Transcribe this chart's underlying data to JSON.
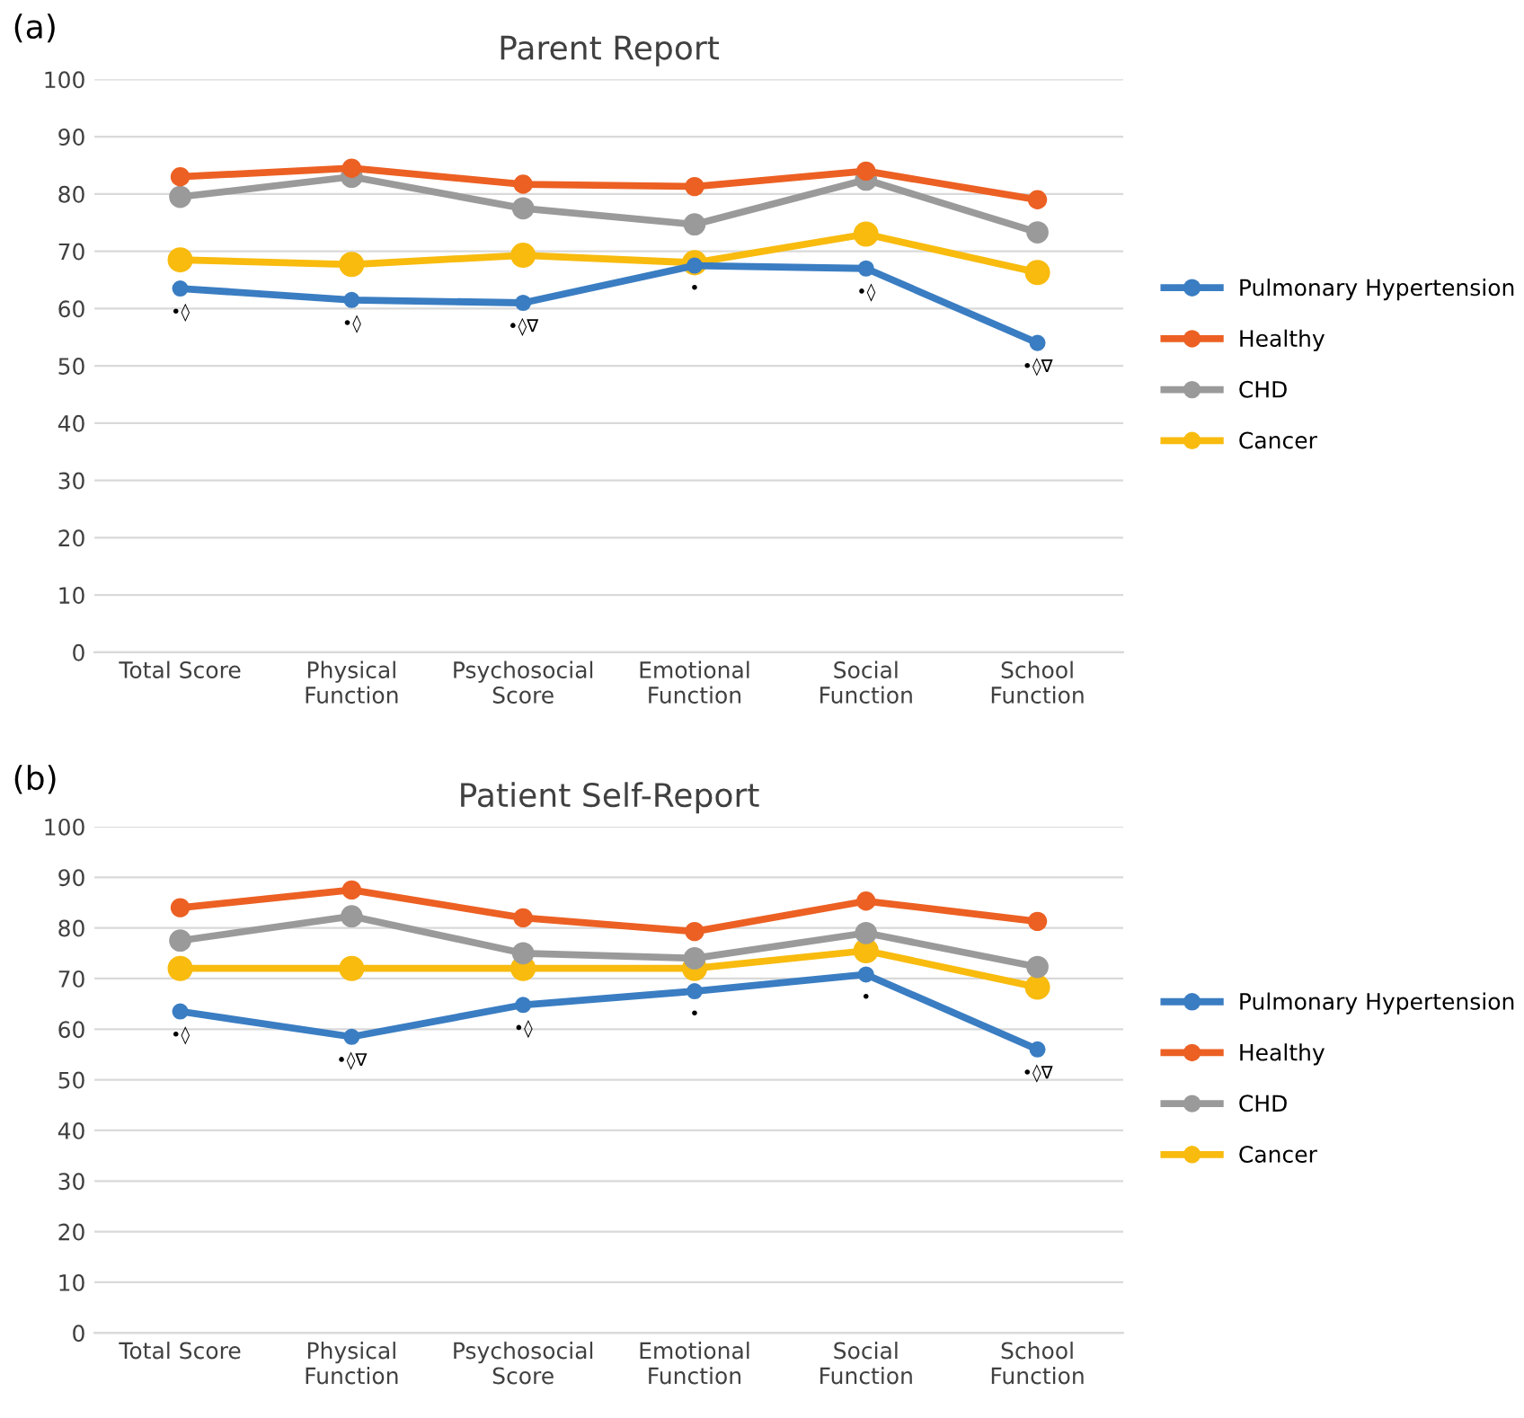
{
  "chart_data": [
    {
      "type": "line",
      "title": "Parent Report",
      "categories": [
        "Total Score",
        "Physical\nFunction",
        "Psychosocial\nScore",
        "Emotional\nFunction",
        "Social\nFunction",
        "School\nFunction"
      ],
      "series": [
        {
          "name": "Pulmonary Hypertension",
          "color": "#3a7dc2",
          "values": [
            63.5,
            61.5,
            61,
            67.5,
            67,
            54
          ]
        },
        {
          "name": "Healthy",
          "color": "#ec6023",
          "values": [
            83,
            84.5,
            81.7,
            81.3,
            84,
            79
          ]
        },
        {
          "name": "CHD",
          "color": "#9a9a9a",
          "values": [
            79.5,
            83,
            77.5,
            74.7,
            82.5,
            73.3
          ]
        },
        {
          "name": "Cancer",
          "color": "#f8bb0e",
          "values": [
            68.5,
            67.7,
            69.3,
            68,
            73,
            66.3
          ]
        }
      ],
      "ylim": [
        0,
        100
      ],
      "yticks": [
        0,
        10,
        20,
        30,
        40,
        50,
        60,
        70,
        80,
        90,
        100
      ],
      "grid": "y",
      "legend": "right",
      "marker": "circle",
      "line_style": "solid",
      "annotations": [
        "(a)",
        {
          "text": "•◊",
          "x": "Total Score",
          "y": 63.5
        },
        {
          "text": "•◊",
          "x": "Physical\nFunction",
          "y": 61.5
        },
        {
          "text": "•◊∇",
          "x": "Psychosocial\nScore",
          "y": 61
        },
        {
          "text": "•",
          "x": "Emotional\nFunction",
          "y": 67.5
        },
        {
          "text": "•◊",
          "x": "Social\nFunction",
          "y": 67
        },
        {
          "text": "•◊∇",
          "x": "School\nFunction",
          "y": 54
        }
      ]
    },
    {
      "type": "line",
      "title": "Patient Self-Report",
      "categories": [
        "Total Score",
        "Physical\nFunction",
        "Psychosocial\nScore",
        "Emotional\nFunction",
        "Social\nFunction",
        "School\nFunction"
      ],
      "series": [
        {
          "name": "Pulmonary Hypertension",
          "color": "#3a7dc2",
          "values": [
            63.5,
            58.5,
            64.8,
            67.5,
            70.8,
            56
          ]
        },
        {
          "name": "Healthy",
          "color": "#ec6023",
          "values": [
            84,
            87.5,
            82,
            79.3,
            85.3,
            81.3
          ]
        },
        {
          "name": "CHD",
          "color": "#9a9a9a",
          "values": [
            77.5,
            82.3,
            75,
            74,
            79,
            72.3
          ]
        },
        {
          "name": "Cancer",
          "color": "#f8bb0e",
          "values": [
            72,
            72,
            72,
            72,
            75.5,
            68.3
          ]
        }
      ],
      "ylim": [
        0,
        100
      ],
      "yticks": [
        0,
        10,
        20,
        30,
        40,
        50,
        60,
        70,
        80,
        90,
        100
      ],
      "grid": "y",
      "legend": "right",
      "marker": "circle",
      "line_style": "solid",
      "annotations": [
        "(b)",
        {
          "text": "•◊",
          "x": "Total Score",
          "y": 63.5
        },
        {
          "text": "•◊∇",
          "x": "Physical\nFunction",
          "y": 58.5
        },
        {
          "text": "•◊",
          "x": "Psychosocial\nScore",
          "y": 64.8
        },
        {
          "text": "•",
          "x": "Emotional\nFunction",
          "y": 67.5
        },
        {
          "text": "•",
          "x": "Social\nFunction",
          "y": 70.8
        },
        {
          "text": "•◊∇",
          "x": "School\nFunction",
          "y": 56
        }
      ]
    }
  ]
}
